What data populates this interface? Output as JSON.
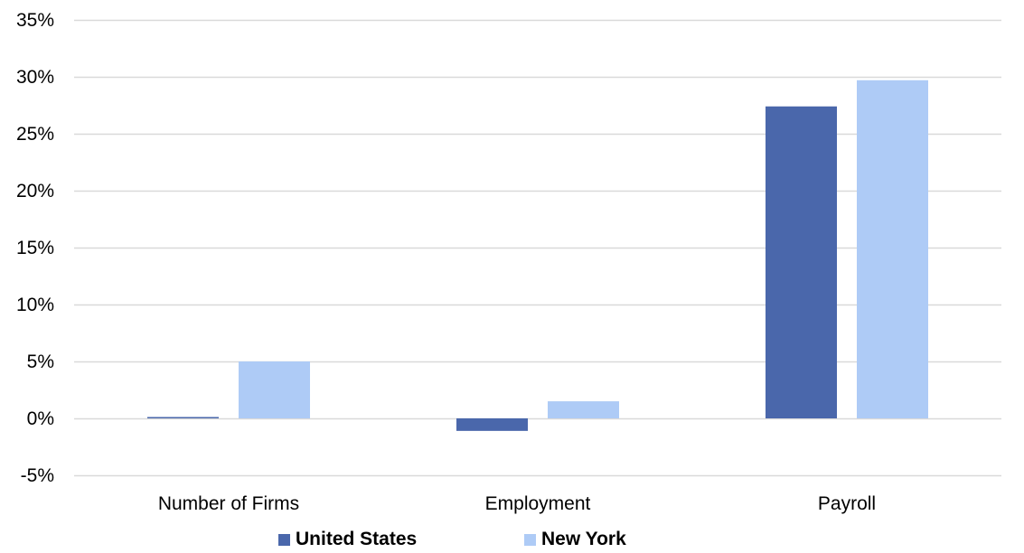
{
  "chart_data": {
    "type": "bar",
    "categories": [
      "Number of Firms",
      "Employment",
      "Payroll"
    ],
    "series": [
      {
        "name": "United States",
        "values": [
          0.1,
          -1.1,
          27.4
        ],
        "color": "#4a67ab"
      },
      {
        "name": "New York",
        "values": [
          5.0,
          1.5,
          29.7
        ],
        "color": "#aecbf6"
      }
    ],
    "ylim": [
      -5,
      35
    ],
    "yticks": [
      -5,
      0,
      5,
      10,
      15,
      20,
      25,
      30,
      35
    ],
    "ytick_format": "percent",
    "grid": true,
    "legend_position": "bottom",
    "gridline_color": "#d9d9d9"
  }
}
